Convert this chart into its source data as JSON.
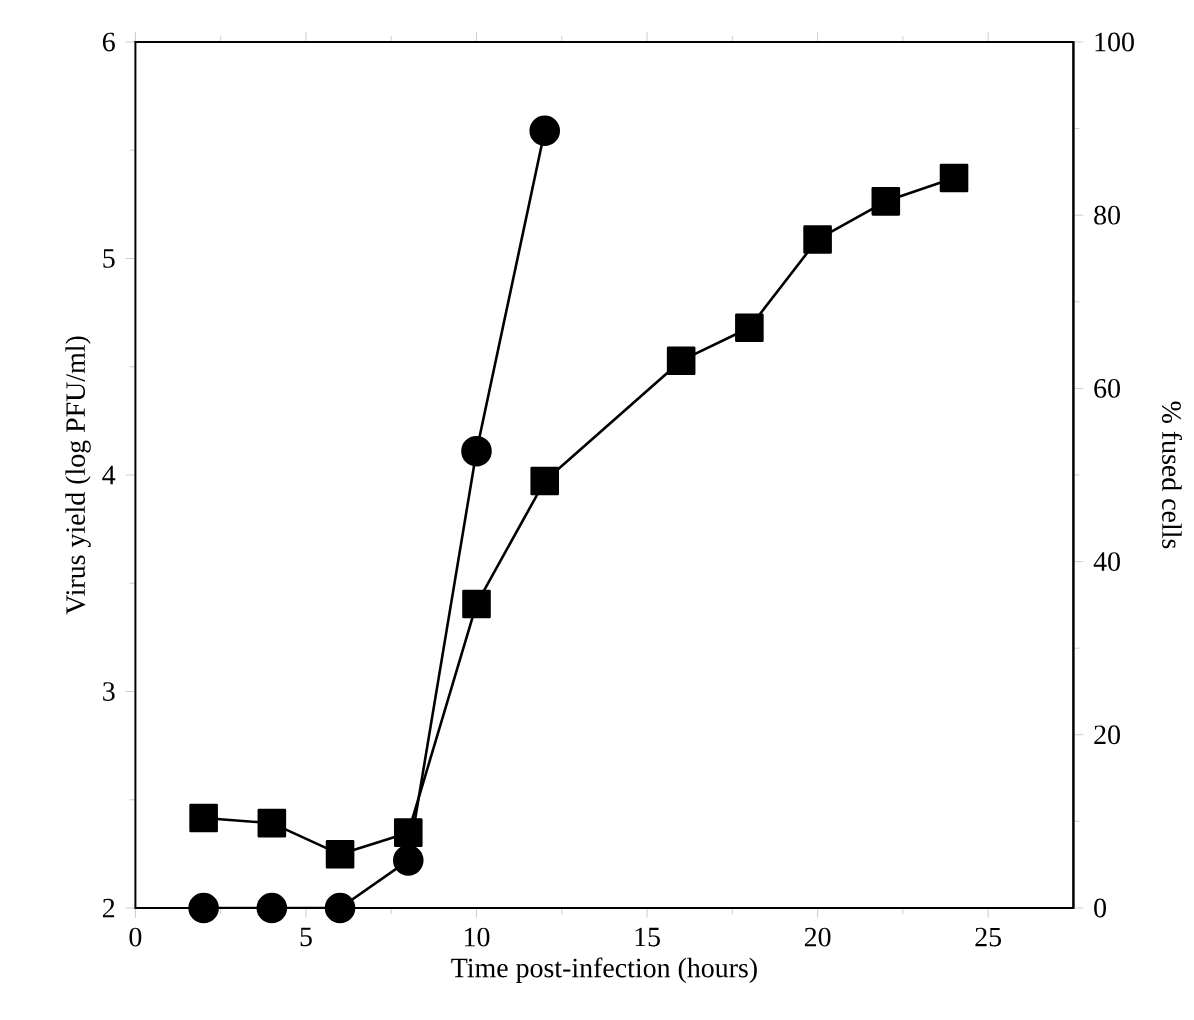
{
  "chart_data": {
    "type": "line",
    "xlabel": "Time post-infection (hours)",
    "ylabel": "Virus yield (log PFU/ml)",
    "y2label": "% fused cells",
    "xlim": [
      0,
      27.5
    ],
    "xticks": [
      0,
      5,
      10,
      15,
      20,
      25
    ],
    "ylim": [
      2,
      6
    ],
    "yticks": [
      2,
      3,
      4,
      5,
      6
    ],
    "y2lim": [
      0,
      100
    ],
    "y2ticks": [
      0,
      20,
      40,
      60,
      80,
      100
    ],
    "line_style": "solid",
    "series": [
      {
        "color": "#000000",
        "marker": "circle",
        "x": [
          2,
          4,
          6,
          8,
          10,
          12
        ],
        "values": [
          2.0,
          2.0,
          2.0,
          2.22,
          4.11,
          5.59
        ]
      },
      {
        "color": "#000000",
        "marker": "square",
        "axis": "y2",
        "x": [
          2,
          4,
          6,
          8,
          10,
          12,
          16,
          18,
          20,
          22,
          24
        ],
        "values": [
          10.4,
          9.8,
          6.2,
          8.7,
          35.1,
          49.3,
          63.2,
          67.0,
          77.2,
          81.6,
          84.3
        ]
      }
    ]
  }
}
